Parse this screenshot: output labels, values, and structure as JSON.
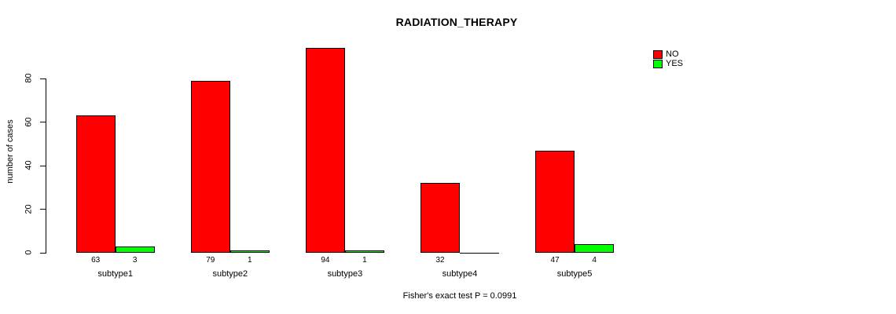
{
  "title": "RADIATION_THERAPY",
  "caption": "Fisher's exact test P = 0.0991",
  "legend": {
    "items": [
      {
        "label": "NO",
        "color": "#ff0000"
      },
      {
        "label": "YES",
        "color": "#00ff00"
      }
    ]
  },
  "chart_data": {
    "type": "bar",
    "title": "RADIATION_THERAPY",
    "categories": [
      "subtype1",
      "subtype2",
      "subtype3",
      "subtype4",
      "subtype5"
    ],
    "series": [
      {
        "name": "NO",
        "color": "#ff0000",
        "values": [
          63,
          79,
          94,
          32,
          47
        ]
      },
      {
        "name": "YES",
        "color": "#00ff00",
        "values": [
          3,
          1,
          1,
          0,
          4
        ]
      }
    ],
    "bar_count_labels": [
      [
        "63",
        "3"
      ],
      [
        "79",
        "1"
      ],
      [
        "94",
        "1"
      ],
      [
        "32",
        ""
      ],
      [
        "47",
        "4"
      ]
    ],
    "xlabel": "",
    "ylabel": "number of cases",
    "yticks": [
      0,
      20,
      40,
      60,
      80
    ],
    "ylim": [
      0,
      96
    ],
    "grid": false,
    "legend_position": "top-right",
    "annotation": "Fisher's exact test P = 0.0991",
    "bar_border_color": "#000000"
  }
}
